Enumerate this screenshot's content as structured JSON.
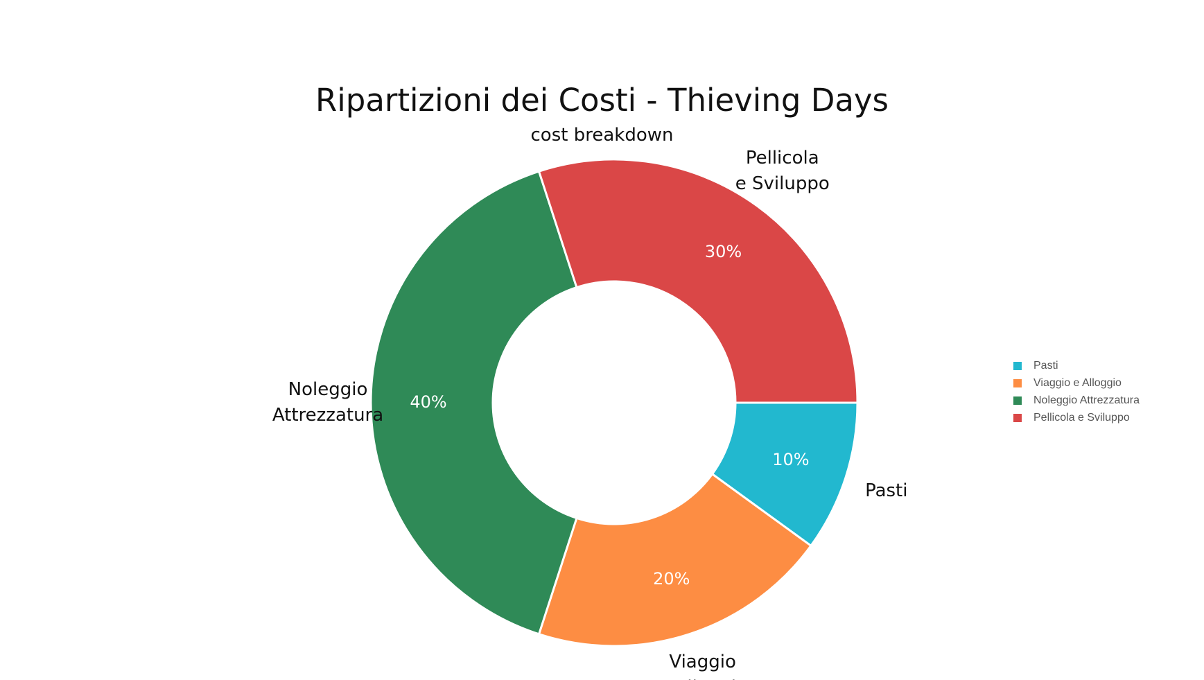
{
  "chart_data": {
    "type": "pie",
    "title": "Ripartizioni dei Costi - Thieving Days",
    "subtitle": "cost breakdown",
    "donut": true,
    "slices": [
      {
        "label": "Pasti",
        "value": 10,
        "value_label": "10%",
        "color": "#22B8CF",
        "outer_label": [
          "Pasti"
        ]
      },
      {
        "label": "Viaggio e Alloggio",
        "value": 20,
        "value_label": "20%",
        "color": "#FD8D43",
        "outer_label": [
          "Viaggio",
          "e Alloggio"
        ]
      },
      {
        "label": "Noleggio Attrezzatura",
        "value": 40,
        "value_label": "40%",
        "color": "#2F8A57",
        "outer_label": [
          "Noleggio",
          "Attrezzatura"
        ]
      },
      {
        "label": "Pellicola e Sviluppo",
        "value": 30,
        "value_label": "30%",
        "color": "#DA4747",
        "outer_label": [
          "Pellicola",
          "e Sviluppo"
        ]
      }
    ],
    "legend": {
      "position": "right",
      "items": [
        "Pasti",
        "Viaggio e Alloggio",
        "Noleggio Attrezzatura",
        "Pellicola e Sviluppo"
      ]
    }
  }
}
